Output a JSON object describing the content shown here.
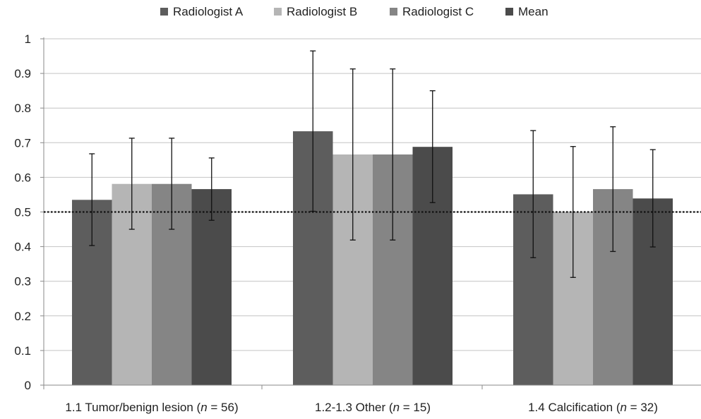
{
  "chart_data": {
    "type": "bar",
    "categories": [
      {
        "prefix": "1.1 Tumor/benign lesion (",
        "n": "n",
        "suffix": " = 56)"
      },
      {
        "prefix": "1.2-1.3 Other (",
        "n": "n",
        "suffix": " = 15)"
      },
      {
        "prefix": "1.4 Calcification (",
        "n": "n",
        "suffix": " = 32)"
      }
    ],
    "series": [
      {
        "name": "Radiologist A",
        "color": "#5d5d5d",
        "values": [
          0.535,
          0.733,
          0.551
        ],
        "error_low": [
          0.403,
          0.502,
          0.368
        ],
        "error_high": [
          0.668,
          0.965,
          0.735
        ]
      },
      {
        "name": "Radiologist B",
        "color": "#b5b5b5",
        "values": [
          0.581,
          0.666,
          0.5
        ],
        "error_low": [
          0.45,
          0.419,
          0.311
        ],
        "error_high": [
          0.713,
          0.913,
          0.689
        ]
      },
      {
        "name": "Radiologist C",
        "color": "#858585",
        "values": [
          0.581,
          0.666,
          0.566
        ],
        "error_low": [
          0.45,
          0.419,
          0.386
        ],
        "error_high": [
          0.713,
          0.913,
          0.746
        ]
      },
      {
        "name": "Mean",
        "color": "#4b4b4b",
        "values": [
          0.566,
          0.688,
          0.539
        ],
        "error_low": [
          0.476,
          0.527,
          0.399
        ],
        "error_high": [
          0.656,
          0.85,
          0.68
        ]
      }
    ],
    "y_ticks": [
      "0",
      "0.1",
      "0.2",
      "0.3",
      "0.4",
      "0.5",
      "0.6",
      "0.7",
      "0.8",
      "0.9",
      "1"
    ],
    "ylim": [
      0,
      1
    ],
    "reference_line": 0.5,
    "grid": true,
    "legend_position": "top-center",
    "title": "",
    "xlabel": "",
    "ylabel": ""
  }
}
